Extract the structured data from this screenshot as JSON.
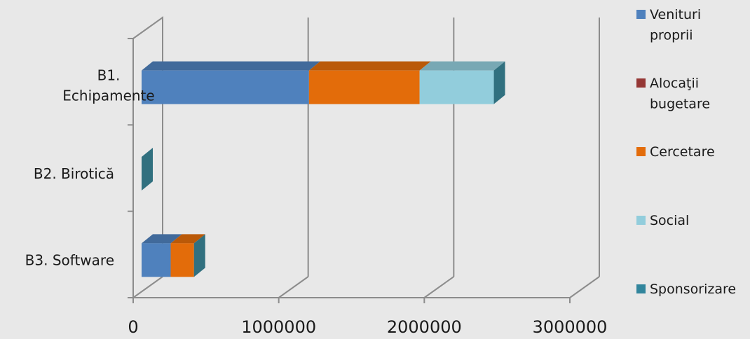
{
  "chart_data": {
    "type": "bar",
    "orientation": "horizontal",
    "stacked": true,
    "three_d": true,
    "categories": [
      "B1. Echipamente",
      "B2. Birotică",
      "B3. Software"
    ],
    "series": [
      {
        "name": "Venituri proprii",
        "color": "#4f81bd",
        "values": [
          1150000,
          0,
          200000
        ]
      },
      {
        "name": "Alocaţii bugetare",
        "color": "#953735",
        "values": [
          0,
          0,
          0
        ]
      },
      {
        "name": "Cercetare",
        "color": "#e36c0a",
        "values": [
          760000,
          0,
          160000
        ]
      },
      {
        "name": "Social",
        "color": "#92cddc",
        "values": [
          510000,
          0,
          0
        ]
      },
      {
        "name": "Sponsorizare",
        "color": "#31859c",
        "values": [
          0,
          0,
          0
        ]
      }
    ],
    "xlim": [
      0,
      3000000
    ],
    "x_ticks": [
      "0",
      "1000000",
      "2000000",
      "3000000"
    ],
    "grid": true,
    "legend_position": "right"
  }
}
